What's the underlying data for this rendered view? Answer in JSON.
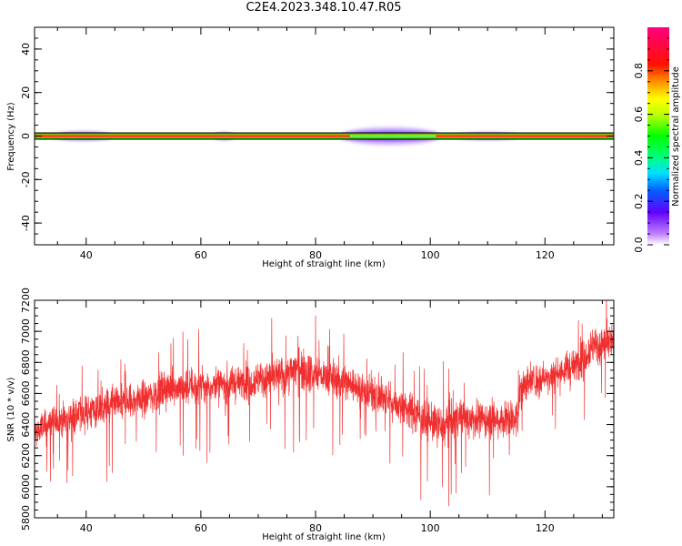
{
  "title": "C2E4.2023.348.10.47.R05",
  "colors": {
    "snr_line": "#f03030",
    "frame": "#000000"
  },
  "chart_data": [
    {
      "type": "heatmap",
      "xlabel": "Height of straight line (km)",
      "ylabel": "Frequency (Hz)",
      "xlim": [
        31,
        132
      ],
      "ylim": [
        -50,
        50
      ],
      "x_ticks": [
        40,
        60,
        80,
        100,
        120
      ],
      "y_ticks": [
        -40,
        -20,
        0,
        20,
        40
      ],
      "colorbar": {
        "label": "Normalized spectral amplitude",
        "range": [
          0,
          1
        ],
        "ticks": [
          0.0,
          0.2,
          0.4,
          0.6,
          0.8
        ],
        "tick_labels": [
          "0.0",
          "0.2",
          "0.4",
          "0.6",
          "0.8"
        ],
        "colormap": "rainbow (white-violet-blue-cyan-green-yellow-red-magenta)"
      },
      "description_band": {
        "center_frequency": 0,
        "band_halfwidth": 1.5,
        "spread_bursts": [
          {
            "x_start": 34,
            "x_end": 45,
            "halfwidth": 2.5
          },
          {
            "x_start": 62,
            "x_end": 66,
            "halfwidth": 2.0
          },
          {
            "x_start": 84,
            "x_end": 102,
            "halfwidth": 4.5
          },
          {
            "x_start": 104,
            "x_end": 116,
            "halfwidth": 2.0
          }
        ]
      }
    },
    {
      "type": "line",
      "xlabel": "Height of straight line (km)",
      "ylabel": "SNR (10 * v/v)",
      "xlim": [
        31,
        132
      ],
      "ylim": [
        5800,
        7200
      ],
      "x_ticks": [
        40,
        60,
        80,
        100,
        120
      ],
      "y_ticks": [
        5800,
        6000,
        6200,
        6400,
        6600,
        6800,
        7000,
        7200
      ],
      "series": [
        {
          "x": [
            31,
            35,
            40,
            45,
            50,
            55,
            60,
            65,
            70,
            75,
            77,
            80,
            85,
            90,
            95,
            100,
            102,
            105,
            110,
            115,
            116,
            120,
            125,
            128,
            132
          ],
          "y": [
            6350,
            6430,
            6480,
            6520,
            6570,
            6640,
            6650,
            6660,
            6690,
            6720,
            6780,
            6720,
            6680,
            6600,
            6520,
            6420,
            6380,
            6450,
            6430,
            6440,
            6660,
            6700,
            6770,
            6900,
            6930
          ],
          "y_spread": [
            260,
            240,
            250,
            260,
            260,
            260,
            250,
            240,
            250,
            260,
            300,
            260,
            250,
            250,
            260,
            280,
            320,
            270,
            260,
            260,
            250,
            250,
            260,
            270,
            260
          ]
        }
      ]
    }
  ]
}
